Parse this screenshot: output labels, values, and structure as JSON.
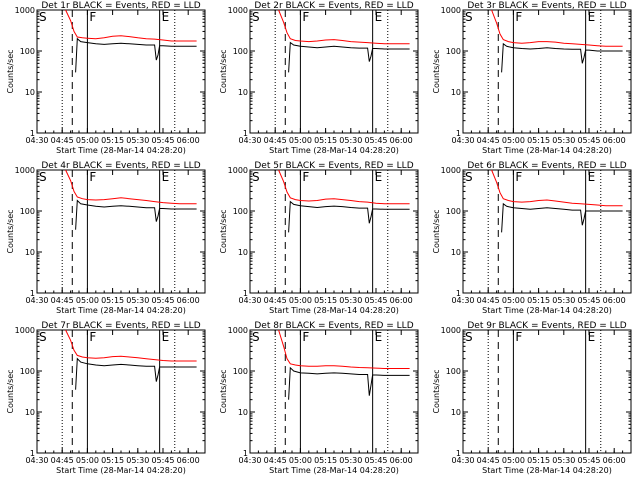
{
  "chart_data": [
    {
      "type": "line",
      "title": "Det 1r BLACK = Events, RED = LLD",
      "ylabel": "Counts/sec",
      "xlabel": "Start Time (28-Mar-14 04:28:20)",
      "x_ticks": [
        "04:30",
        "04:45",
        "05:00",
        "05:15",
        "05:30",
        "05:45",
        "06:00"
      ],
      "y_ticks": [
        "1",
        "10",
        "100",
        "1000"
      ],
      "ylim": [
        1,
        1000
      ],
      "y_scale": "log",
      "markers": [
        "S",
        "F",
        "E"
      ],
      "series": [
        {
          "color": "#ff0000",
          "x": [
            "04:47",
            "04:50",
            "04:52",
            "04:54",
            "04:57",
            "05:00",
            "05:05",
            "05:10",
            "05:15",
            "05:20",
            "05:25",
            "05:30",
            "05:35",
            "05:40",
            "05:45",
            "05:50",
            "05:55",
            "06:00",
            "06:05"
          ],
          "values": [
            1000,
            550,
            300,
            220,
            210,
            205,
            200,
            210,
            230,
            235,
            225,
            210,
            200,
            195,
            185,
            175,
            175,
            175,
            175
          ]
        },
        {
          "color": "#000000",
          "x": [
            "04:53",
            "04:54",
            "04:56",
            "05:00",
            "05:05",
            "05:10",
            "05:15",
            "05:20",
            "05:25",
            "05:30",
            "05:35",
            "05:40",
            "05:41",
            "05:42",
            "05:43",
            "05:45",
            "05:50",
            "05:55",
            "06:00",
            "06:05"
          ],
          "values": [
            30,
            200,
            170,
            160,
            150,
            145,
            150,
            155,
            150,
            145,
            140,
            140,
            60,
            80,
            135,
            135,
            130,
            130,
            130,
            130
          ]
        }
      ]
    },
    {
      "type": "line",
      "title": "Det 2r BLACK = Events, RED = LLD",
      "ylabel": "Counts/sec",
      "xlabel": "Start Time (28-Mar-14 04:28:20)",
      "x_ticks": [
        "04:30",
        "04:45",
        "05:00",
        "05:15",
        "05:30",
        "05:45",
        "06:00"
      ],
      "y_ticks": [
        "1",
        "10",
        "100",
        "1000"
      ],
      "ylim": [
        1,
        1000
      ],
      "y_scale": "log",
      "markers": [
        "S",
        "F",
        "E"
      ],
      "series": [
        {
          "color": "#ff0000",
          "x": [
            "04:47",
            "04:50",
            "04:52",
            "04:54",
            "04:57",
            "05:00",
            "05:05",
            "05:10",
            "05:15",
            "05:20",
            "05:25",
            "05:30",
            "05:35",
            "05:40",
            "05:45",
            "05:50",
            "05:55",
            "06:00",
            "06:05"
          ],
          "values": [
            1000,
            500,
            280,
            200,
            180,
            175,
            170,
            175,
            185,
            190,
            180,
            170,
            165,
            160,
            155,
            150,
            150,
            150,
            150
          ]
        },
        {
          "color": "#000000",
          "x": [
            "04:53",
            "04:54",
            "04:56",
            "05:00",
            "05:05",
            "05:10",
            "05:15",
            "05:20",
            "05:25",
            "05:30",
            "05:35",
            "05:40",
            "05:41",
            "05:42",
            "05:43",
            "05:45",
            "05:50",
            "05:55",
            "06:00",
            "06:05"
          ],
          "values": [
            30,
            160,
            140,
            130,
            125,
            120,
            125,
            130,
            125,
            120,
            118,
            118,
            55,
            75,
            115,
            115,
            112,
            112,
            112,
            112
          ]
        }
      ]
    },
    {
      "type": "line",
      "title": "Det 3r BLACK = Events, RED = LLD",
      "ylabel": "Counts/sec",
      "xlabel": "Start Time (28-Mar-14 04:28:20)",
      "x_ticks": [
        "04:30",
        "04:45",
        "05:00",
        "05:15",
        "05:30",
        "05:45",
        "06:00"
      ],
      "y_ticks": [
        "1",
        "10",
        "100",
        "1000"
      ],
      "ylim": [
        1,
        1000
      ],
      "y_scale": "log",
      "markers": [
        "S",
        "F",
        "E"
      ],
      "series": [
        {
          "color": "#ff0000",
          "x": [
            "04:47",
            "04:50",
            "04:52",
            "04:54",
            "04:57",
            "05:00",
            "05:05",
            "05:10",
            "05:15",
            "05:20",
            "05:25",
            "05:30",
            "05:35",
            "05:40",
            "05:45",
            "05:50",
            "05:55",
            "06:00",
            "06:05"
          ],
          "values": [
            1000,
            480,
            260,
            190,
            170,
            160,
            155,
            160,
            170,
            170,
            165,
            155,
            150,
            145,
            140,
            135,
            130,
            130,
            130
          ]
        },
        {
          "color": "#000000",
          "x": [
            "04:53",
            "04:54",
            "04:56",
            "05:00",
            "05:05",
            "05:10",
            "05:15",
            "05:20",
            "05:25",
            "05:30",
            "05:35",
            "05:40",
            "05:41",
            "05:42",
            "05:43",
            "05:45",
            "05:50",
            "05:55",
            "06:00",
            "06:05"
          ],
          "values": [
            30,
            150,
            130,
            120,
            115,
            112,
            115,
            120,
            115,
            112,
            110,
            110,
            50,
            70,
            105,
            105,
            100,
            100,
            100,
            100
          ]
        }
      ]
    },
    {
      "type": "line",
      "title": "Det 4r BLACK = Events, RED = LLD",
      "ylabel": "Counts/sec",
      "xlabel": "Start Time (28-Mar-14 04:28:20)",
      "x_ticks": [
        "04:30",
        "04:45",
        "05:00",
        "05:15",
        "05:30",
        "05:45",
        "06:00"
      ],
      "y_ticks": [
        "1",
        "10",
        "100",
        "1000"
      ],
      "ylim": [
        1,
        1000
      ],
      "y_scale": "log",
      "markers": [
        "S",
        "F",
        "E"
      ],
      "series": [
        {
          "color": "#ff0000",
          "x": [
            "04:47",
            "04:50",
            "04:52",
            "04:54",
            "04:57",
            "05:00",
            "05:05",
            "05:10",
            "05:15",
            "05:20",
            "05:25",
            "05:30",
            "05:35",
            "05:40",
            "05:45",
            "05:50",
            "05:55",
            "06:00",
            "06:05"
          ],
          "values": [
            1000,
            550,
            300,
            220,
            200,
            190,
            185,
            190,
            200,
            210,
            200,
            190,
            180,
            170,
            160,
            155,
            150,
            150,
            150
          ]
        },
        {
          "color": "#000000",
          "x": [
            "04:53",
            "04:54",
            "04:56",
            "05:00",
            "05:05",
            "05:10",
            "05:15",
            "05:20",
            "05:25",
            "05:30",
            "05:35",
            "05:40",
            "05:41",
            "05:42",
            "05:43",
            "05:45",
            "05:50",
            "05:55",
            "06:00",
            "06:05"
          ],
          "values": [
            35,
            180,
            150,
            140,
            130,
            125,
            130,
            135,
            130,
            125,
            120,
            120,
            55,
            75,
            115,
            115,
            112,
            112,
            112,
            112
          ]
        }
      ]
    },
    {
      "type": "line",
      "title": "Det 5r BLACK = Events, RED = LLD",
      "ylabel": "Counts/sec",
      "xlabel": "Start Time (28-Mar-14 04:28:20)",
      "x_ticks": [
        "04:30",
        "04:45",
        "05:00",
        "05:15",
        "05:30",
        "05:45",
        "06:00"
      ],
      "y_ticks": [
        "1",
        "10",
        "100",
        "1000"
      ],
      "ylim": [
        1,
        1000
      ],
      "y_scale": "log",
      "markers": [
        "S",
        "F",
        "E"
      ],
      "series": [
        {
          "color": "#ff0000",
          "x": [
            "04:47",
            "04:50",
            "04:52",
            "04:54",
            "04:57",
            "05:00",
            "05:05",
            "05:10",
            "05:15",
            "05:20",
            "05:25",
            "05:30",
            "05:35",
            "05:40",
            "05:45",
            "05:50",
            "05:55",
            "06:00",
            "06:05"
          ],
          "values": [
            1000,
            520,
            290,
            210,
            190,
            180,
            175,
            180,
            195,
            200,
            190,
            180,
            170,
            165,
            155,
            150,
            150,
            150,
            150
          ]
        },
        {
          "color": "#000000",
          "x": [
            "04:53",
            "04:54",
            "04:56",
            "05:00",
            "05:05",
            "05:10",
            "05:15",
            "05:20",
            "05:25",
            "05:30",
            "05:35",
            "05:40",
            "05:41",
            "05:42",
            "05:43",
            "05:45",
            "05:50",
            "05:55",
            "06:00",
            "06:05"
          ],
          "values": [
            30,
            170,
            145,
            135,
            128,
            122,
            128,
            132,
            128,
            122,
            118,
            118,
            50,
            72,
            112,
            112,
            110,
            110,
            110,
            110
          ]
        }
      ]
    },
    {
      "type": "line",
      "title": "Det 6r BLACK = Events, RED = LLD",
      "ylabel": "Counts/sec",
      "xlabel": "Start Time (28-Mar-14 04:28:20)",
      "x_ticks": [
        "04:30",
        "04:45",
        "05:00",
        "05:15",
        "05:30",
        "05:45",
        "06:00"
      ],
      "y_ticks": [
        "1",
        "10",
        "100",
        "1000"
      ],
      "ylim": [
        1,
        1000
      ],
      "y_scale": "log",
      "markers": [
        "S",
        "F",
        "E"
      ],
      "series": [
        {
          "color": "#ff0000",
          "x": [
            "04:47",
            "04:50",
            "04:52",
            "04:54",
            "04:57",
            "05:00",
            "05:05",
            "05:10",
            "05:15",
            "05:20",
            "05:25",
            "05:30",
            "05:35",
            "05:40",
            "05:45",
            "05:50",
            "05:55",
            "06:00",
            "06:05"
          ],
          "values": [
            1000,
            500,
            280,
            200,
            180,
            170,
            165,
            170,
            180,
            185,
            175,
            165,
            155,
            150,
            145,
            140,
            135,
            135,
            135
          ]
        },
        {
          "color": "#000000",
          "x": [
            "04:53",
            "04:54",
            "04:56",
            "05:00",
            "05:05",
            "05:10",
            "05:15",
            "05:20",
            "05:25",
            "05:30",
            "05:35",
            "05:40",
            "05:41",
            "05:42",
            "05:43",
            "05:45",
            "05:50",
            "05:55",
            "06:00",
            "06:05"
          ],
          "values": [
            30,
            150,
            130,
            120,
            115,
            110,
            115,
            120,
            115,
            110,
            105,
            105,
            45,
            65,
            100,
            100,
            100,
            100,
            100,
            100
          ]
        }
      ]
    },
    {
      "type": "line",
      "title": "Det 7r BLACK = Events, RED = LLD",
      "ylabel": "Counts/sec",
      "xlabel": "Start Time (28-Mar-14 04:28:20)",
      "x_ticks": [
        "04:30",
        "04:45",
        "05:00",
        "05:15",
        "05:30",
        "05:45",
        "06:00"
      ],
      "y_ticks": [
        "1",
        "10",
        "100",
        "1000"
      ],
      "ylim": [
        1,
        1000
      ],
      "y_scale": "log",
      "markers": [
        "S",
        "F",
        "E"
      ],
      "series": [
        {
          "color": "#ff0000",
          "x": [
            "04:47",
            "04:50",
            "04:52",
            "04:54",
            "04:57",
            "05:00",
            "05:05",
            "05:10",
            "05:15",
            "05:20",
            "05:25",
            "05:30",
            "05:35",
            "05:40",
            "05:45",
            "05:50",
            "05:55",
            "06:00",
            "06:05"
          ],
          "values": [
            1000,
            560,
            320,
            240,
            220,
            210,
            205,
            210,
            225,
            230,
            220,
            210,
            200,
            190,
            180,
            175,
            175,
            175,
            175
          ]
        },
        {
          "color": "#000000",
          "x": [
            "04:53",
            "04:54",
            "04:56",
            "05:00",
            "05:05",
            "05:10",
            "05:15",
            "05:20",
            "05:25",
            "05:30",
            "05:35",
            "05:40",
            "05:41",
            "05:42",
            "05:43",
            "05:45",
            "05:50",
            "05:55",
            "06:00",
            "06:05"
          ],
          "values": [
            35,
            200,
            165,
            150,
            140,
            135,
            140,
            145,
            140,
            135,
            130,
            130,
            55,
            80,
            125,
            125,
            125,
            125,
            125,
            125
          ]
        }
      ]
    },
    {
      "type": "line",
      "title": "Det 8r BLACK = Events, RED = LLD",
      "ylabel": "Counts/sec",
      "xlabel": "Start Time (28-Mar-14 04:28:20)",
      "x_ticks": [
        "04:30",
        "04:45",
        "05:00",
        "05:15",
        "05:30",
        "05:45",
        "06:00"
      ],
      "y_ticks": [
        "1",
        "10",
        "100",
        "1000"
      ],
      "ylim": [
        1,
        1000
      ],
      "y_scale": "log",
      "markers": [
        "S",
        "F",
        "E"
      ],
      "series": [
        {
          "color": "#ff0000",
          "x": [
            "04:47",
            "04:50",
            "04:52",
            "04:54",
            "04:57",
            "05:00",
            "05:05",
            "05:10",
            "05:15",
            "05:20",
            "05:25",
            "05:30",
            "05:35",
            "05:40",
            "05:45",
            "05:50",
            "05:55",
            "06:00",
            "06:05"
          ],
          "values": [
            1000,
            400,
            200,
            150,
            140,
            135,
            130,
            130,
            135,
            135,
            130,
            125,
            122,
            120,
            118,
            115,
            115,
            115,
            115
          ]
        },
        {
          "color": "#000000",
          "x": [
            "04:53",
            "04:54",
            "04:56",
            "05:00",
            "05:05",
            "05:10",
            "05:15",
            "05:20",
            "05:25",
            "05:30",
            "05:35",
            "05:40",
            "05:41",
            "05:42",
            "05:43",
            "05:45",
            "05:50",
            "05:55",
            "06:00",
            "06:05"
          ],
          "values": [
            20,
            120,
            100,
            90,
            88,
            85,
            88,
            90,
            88,
            85,
            82,
            82,
            25,
            45,
            80,
            80,
            78,
            78,
            78,
            78
          ]
        }
      ]
    },
    {
      "type": "line",
      "title": "Det 9r BLACK = Events, RED = LLD",
      "ylabel": "Counts/sec",
      "xlabel": "Start Time (28-Mar-14 04:28:20)",
      "x_ticks": [
        "04:30",
        "04:45",
        "05:00",
        "05:15",
        "05:30",
        "05:45",
        "06:00"
      ],
      "y_ticks": [
        "1",
        "10",
        "100",
        "1000"
      ],
      "ylim": [
        1,
        1000
      ],
      "y_scale": "log",
      "markers": [
        "S",
        "F",
        "E"
      ],
      "series": []
    }
  ]
}
